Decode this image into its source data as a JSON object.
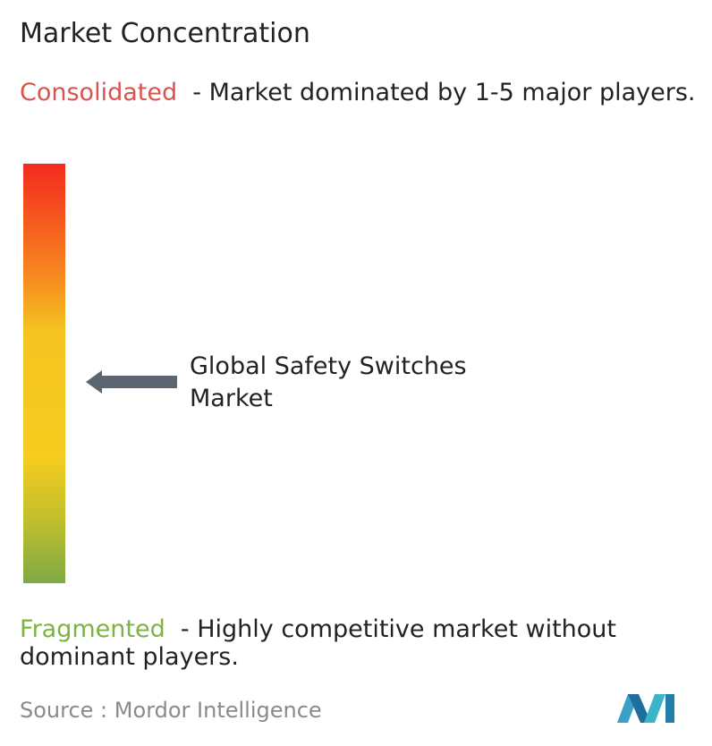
{
  "header": {
    "title": "Market Concentration"
  },
  "consolidated": {
    "label": "Consolidated",
    "description": "- Market dominated by 1-5 major players."
  },
  "market": {
    "label": "Global Safety Switches Market"
  },
  "fragmented": {
    "label": "Fragmented",
    "description": "- Highly competitive market without dominant players."
  },
  "source": {
    "prefix": "Source :",
    "name": "Mordor Intelligence"
  }
}
